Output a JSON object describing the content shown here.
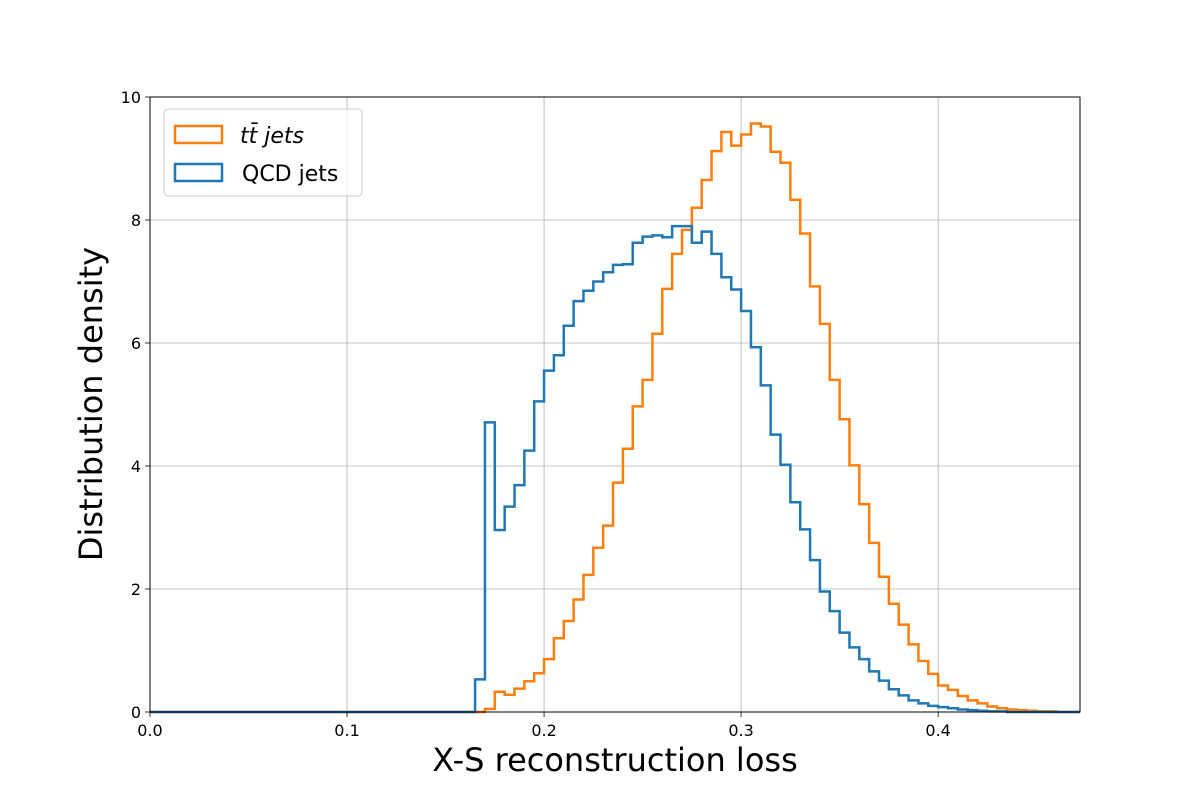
{
  "chart_data": {
    "type": "step-histogram",
    "title": "",
    "xlabel": "X-S reconstruction loss",
    "ylabel": "Distribution density",
    "xlim": [
      0.0,
      0.472
    ],
    "ylim": [
      0,
      10
    ],
    "xticks": [
      0.0,
      0.1,
      0.2,
      0.3,
      0.4
    ],
    "xtick_labels": [
      "0.0",
      "0.1",
      "0.2",
      "0.3",
      "0.4"
    ],
    "yticks": [
      0,
      2,
      4,
      6,
      8,
      10
    ],
    "ytick_labels": [
      "0",
      "2",
      "4",
      "6",
      "8",
      "10"
    ],
    "grid": true,
    "legend_position": "top-left",
    "bin_start": 0.0,
    "bin_width": 0.005,
    "series": [
      {
        "name": "tt̄ jets",
        "color": "#ff7f0e",
        "values": [
          0,
          0,
          0,
          0,
          0,
          0,
          0,
          0,
          0,
          0,
          0,
          0,
          0,
          0,
          0,
          0,
          0,
          0,
          0,
          0,
          0,
          0,
          0,
          0,
          0,
          0,
          0,
          0,
          0,
          0,
          0,
          0,
          0,
          0,
          0.05,
          0.33,
          0.28,
          0.38,
          0.5,
          0.63,
          0.86,
          1.2,
          1.48,
          1.83,
          2.23,
          2.67,
          3.03,
          3.73,
          4.28,
          4.97,
          5.4,
          6.15,
          6.88,
          7.45,
          7.84,
          8.2,
          8.65,
          9.12,
          9.43,
          9.21,
          9.39,
          9.57,
          9.52,
          9.11,
          8.93,
          8.33,
          7.78,
          6.92,
          6.31,
          5.4,
          4.76,
          4.01,
          3.38,
          2.75,
          2.2,
          1.76,
          1.42,
          1.1,
          0.83,
          0.62,
          0.43,
          0.36,
          0.26,
          0.19,
          0.14,
          0.09,
          0.06,
          0.04,
          0.03,
          0.02,
          0.01,
          0.01,
          0,
          0,
          0
        ]
      },
      {
        "name": "QCD jets",
        "color": "#1f77b4",
        "values": [
          0,
          0,
          0,
          0,
          0,
          0,
          0,
          0,
          0,
          0,
          0,
          0,
          0,
          0,
          0,
          0,
          0,
          0,
          0,
          0,
          0,
          0,
          0,
          0,
          0,
          0,
          0,
          0,
          0,
          0,
          0,
          0,
          0,
          0.53,
          4.71,
          2.96,
          3.34,
          3.69,
          4.25,
          5.05,
          5.55,
          5.8,
          6.28,
          6.68,
          6.85,
          7.0,
          7.15,
          7.27,
          7.28,
          7.63,
          7.73,
          7.75,
          7.72,
          7.9,
          7.9,
          7.63,
          7.81,
          7.45,
          7.07,
          6.87,
          6.52,
          5.93,
          5.31,
          4.51,
          4.02,
          3.41,
          2.97,
          2.47,
          1.96,
          1.64,
          1.29,
          1.05,
          0.86,
          0.66,
          0.51,
          0.37,
          0.27,
          0.19,
          0.14,
          0.1,
          0.08,
          0.06,
          0.04,
          0.03,
          0.02,
          0.01,
          0.01,
          0,
          0,
          0,
          0,
          0,
          0,
          0,
          0
        ]
      }
    ]
  }
}
